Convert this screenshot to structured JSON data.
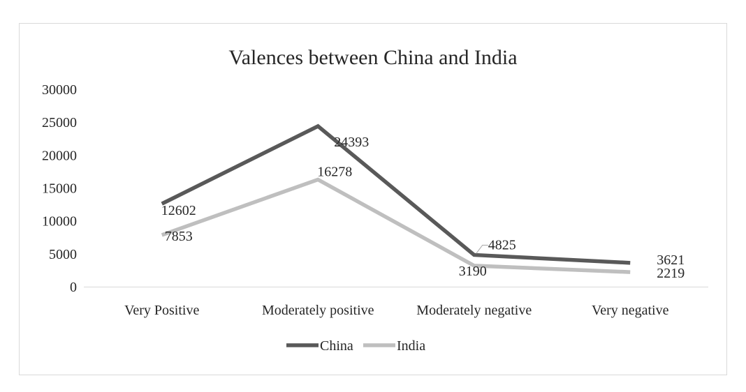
{
  "chart_data": {
    "type": "line",
    "title": "Valences between China and India",
    "categories": [
      "Very Positive",
      "Moderately positive",
      "Moderately negative",
      "Very negative"
    ],
    "series": [
      {
        "name": "China",
        "values": [
          12602,
          24393,
          4825,
          3621
        ],
        "color": "#595959"
      },
      {
        "name": "India",
        "values": [
          7853,
          16278,
          3190,
          2219
        ],
        "color": "#bfbfbf"
      }
    ],
    "ylim": [
      0,
      30000
    ],
    "yticks": [
      0,
      5000,
      10000,
      15000,
      20000,
      25000,
      30000
    ],
    "xlabel": "",
    "ylabel": "",
    "legend_position": "bottom",
    "grid": false,
    "data_labels": true
  }
}
